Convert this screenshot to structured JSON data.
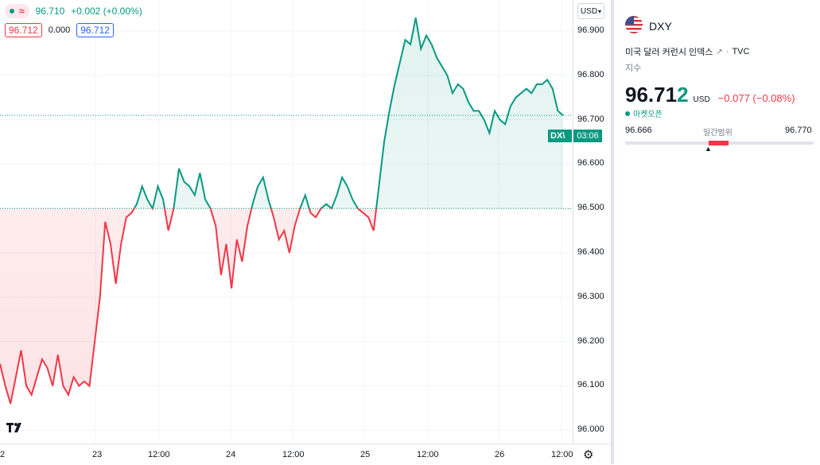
{
  "legend": {
    "price": "96.710",
    "change": "+0.002 (+0.00%)",
    "bid": "96.712",
    "spread": "0.000",
    "ask": "96.712"
  },
  "price_axis": {
    "currency": "USD",
    "ticks": [
      "96.900",
      "96.800",
      "96.700",
      "96.600",
      "96.500",
      "96.400",
      "96.300",
      "96.200",
      "96.100",
      "96.000"
    ],
    "symbol_tag": "DX\\",
    "time_tag": "03:06"
  },
  "time_axis": {
    "labels": [
      "2",
      "23",
      "12:00",
      "24",
      "12:00",
      "25",
      "12:00",
      "26",
      "12:00"
    ]
  },
  "info": {
    "symbol": "DXY",
    "name": "미국 달러 커런시 인덱스",
    "exchange": "TVC",
    "type": "지수",
    "price_main": "96.71",
    "price_last": "2",
    "currency": "USD",
    "change": "−0.077 (−0.08%)",
    "market_status": "마켓오픈",
    "range_low": "96.666",
    "range_label": "일간범위",
    "range_high": "96.770"
  },
  "colors": {
    "up": "#089981",
    "down": "#f23645",
    "accent": "#2962ff"
  },
  "chart_data": {
    "type": "line",
    "title": "",
    "xlabel": "",
    "ylabel": "",
    "baseline": 96.5,
    "ylim": [
      95.97,
      96.97
    ],
    "x_ticks": [
      "2",
      "23",
      "12:00",
      "24",
      "12:00",
      "25",
      "12:00",
      "26",
      "12:00"
    ],
    "series": [
      {
        "values": [
          96.15,
          96.1,
          96.06,
          96.12,
          96.18,
          96.1,
          96.08,
          96.12,
          96.16,
          96.14,
          96.1,
          96.17,
          96.1,
          96.08,
          96.12,
          96.1,
          96.11,
          96.1,
          96.2,
          96.3,
          96.47,
          96.42,
          96.33,
          96.42,
          96.48,
          96.49,
          96.51,
          96.55,
          96.52,
          96.5,
          96.55,
          96.52,
          96.45,
          96.5,
          96.59,
          96.56,
          96.55,
          96.53,
          96.58,
          96.52,
          96.5,
          96.46,
          96.35,
          96.42,
          96.32,
          96.43,
          96.38,
          96.46,
          96.51,
          96.55,
          96.57,
          96.52,
          96.48,
          96.43,
          96.45,
          96.4,
          96.46,
          96.5,
          96.53,
          96.49,
          96.48,
          96.5,
          96.51,
          96.5,
          96.53,
          96.57,
          96.55,
          96.52,
          96.5,
          96.49,
          96.48,
          96.45,
          96.55,
          96.65,
          96.72,
          96.78,
          96.83,
          96.88,
          96.87,
          96.93,
          96.86,
          96.89,
          96.87,
          96.84,
          96.82,
          96.8,
          96.76,
          96.78,
          96.77,
          96.74,
          96.72,
          96.72,
          96.7,
          96.67,
          96.72,
          96.7,
          96.69,
          96.73,
          96.75,
          96.76,
          96.77,
          96.76,
          96.78,
          96.78,
          96.79,
          96.77,
          96.72,
          96.71
        ]
      }
    ]
  }
}
